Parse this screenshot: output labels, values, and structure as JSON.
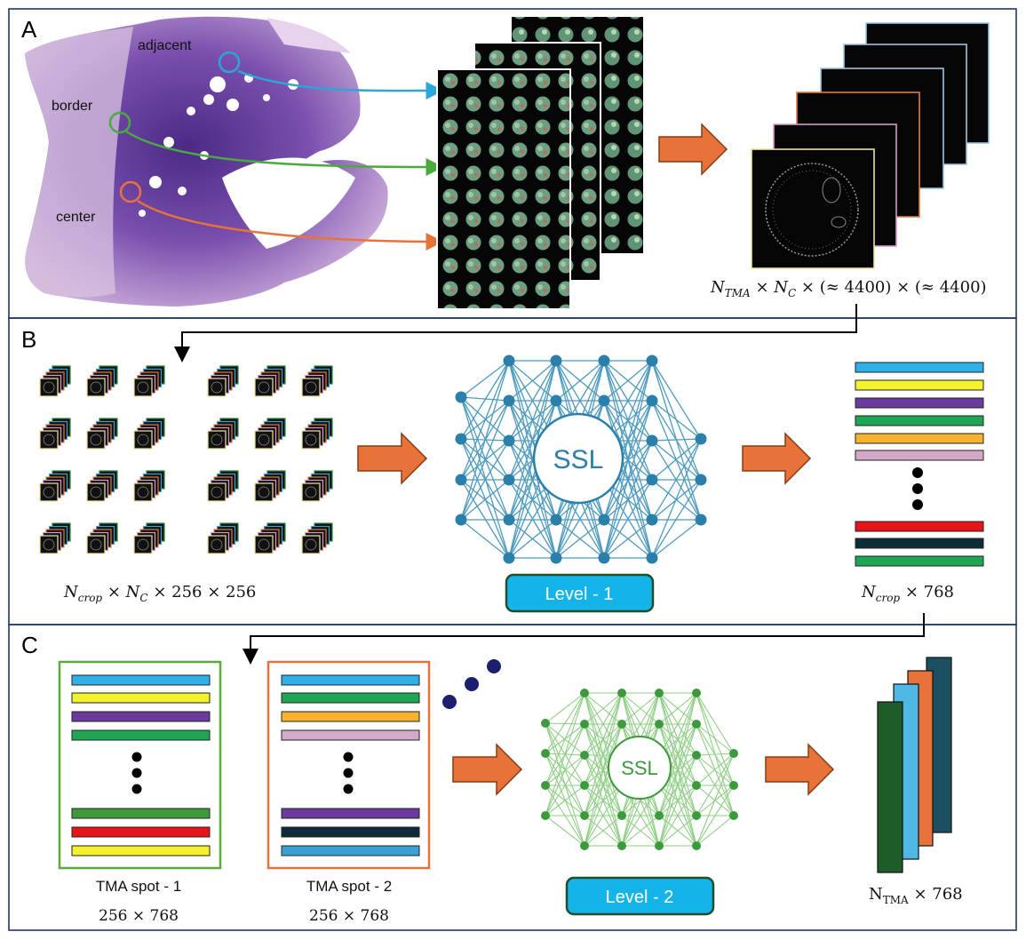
{
  "panels": {
    "a": {
      "letter": "A",
      "regions": [
        {
          "label": "adjacent",
          "color": "#2aa6d8"
        },
        {
          "label": "border",
          "color": "#4aab3c"
        },
        {
          "label": "center",
          "color": "#e8733a"
        }
      ],
      "dims": {
        "n_sym": "N",
        "n_sub": "TMA",
        "times": " × ",
        "c_sym": "N",
        "c_sub": "C",
        "tail": " × (≈ 4400) × (≈ 4400)"
      }
    },
    "b": {
      "letter": "B",
      "ssl_label": "SSL",
      "level_label": "Level - 1",
      "crop_dims": {
        "n_sym": "N",
        "n_sub": "crop",
        "times": " × ",
        "c_sym": "N",
        "c_sub": "C",
        "tail": " × 256 × 256"
      },
      "out_dims": {
        "n_sym": "N",
        "n_sub": "crop",
        "tail": " × 768"
      },
      "embedding_colors": [
        "#2fb0e8",
        "#f4f22c",
        "#6a3a9c",
        "#1fa653",
        "#f7b32f",
        "#d4a9c8",
        "#e8141c",
        "#0d2b3a",
        "#1fa653"
      ]
    },
    "c": {
      "letter": "C",
      "spot1": {
        "label": "TMA spot - 1",
        "dims": "256 × 768",
        "border": "#5aaa3c",
        "bars": [
          "#2fb0e8",
          "#f4f22c",
          "#6a3a9c",
          "#1fa653",
          "#3e9b3a",
          "#e8141c",
          "#f4f22c"
        ]
      },
      "spot2": {
        "label": "TMA spot - 2",
        "dims": "256 × 768",
        "border": "#e8733a",
        "bars": [
          "#2fb0e8",
          "#1fa653",
          "#f7b32f",
          "#d4a9c8",
          "#6a3a9c",
          "#0d2b3a",
          "#3aa0d6"
        ]
      },
      "ssl_label": "SSL",
      "level_label": "Level - 2",
      "out_dims": {
        "n_sym": "N",
        "n_sub": "TMA",
        "tail": " × 768"
      },
      "out_colors": [
        "#1c4f62",
        "#e8733a",
        "#4fb8e4",
        "#1e5c2a"
      ]
    }
  },
  "colors": {
    "frame": "#1f3864",
    "arrow_fill": "#e8733a",
    "arrow_stroke": "#8a3a12",
    "level_fill": "#14b4e8",
    "level_stroke": "#1f4e2a",
    "net1": "#4e9bbf",
    "net1_node": "#2a7fab",
    "net2": "#8fcf85",
    "net2_node": "#3c9a3c",
    "dots": "#1b1f6e"
  }
}
